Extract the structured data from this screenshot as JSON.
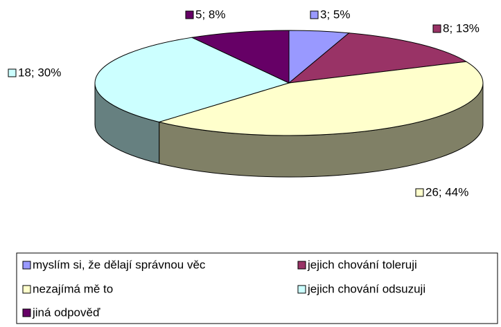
{
  "chart_data": {
    "type": "pie",
    "categories": [
      "myslím si, že dělají správnou věc",
      "jejich chování toleruji",
      "nezajímá mě to",
      "jejich chování odsuzuji",
      "jiná odpověď"
    ],
    "values": [
      3,
      8,
      26,
      18,
      5
    ],
    "value_labels": [
      "3; 5%",
      "8; 13%",
      "26; 44%",
      "18; 30%",
      "5; 8%"
    ],
    "colors": [
      "#9999ff",
      "#993366",
      "#ffffcc",
      "#ccffff",
      "#660066"
    ],
    "legend": "bottom"
  }
}
